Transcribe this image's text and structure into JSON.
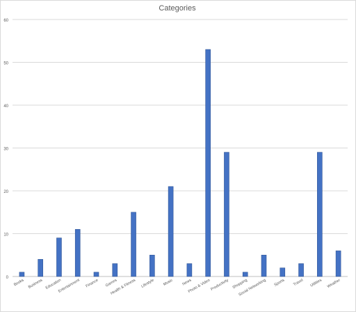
{
  "chart_data": {
    "type": "bar",
    "title": "Categories",
    "xlabel": "",
    "ylabel": "",
    "categories": [
      "Books",
      "Business",
      "Education",
      "Entertainment",
      "Finance",
      "Games",
      "Health & Fitness",
      "Lifestyle",
      "Music",
      "News",
      "Photo & Video",
      "Productivity",
      "Shopping",
      "Social Networking",
      "Sports",
      "Travel",
      "Utilities",
      "Weather"
    ],
    "values": [
      1,
      4,
      9,
      11,
      1,
      3,
      15,
      5,
      21,
      3,
      53,
      29,
      1,
      5,
      2,
      3,
      29,
      6
    ],
    "ylim": [
      0,
      60
    ],
    "yticks": [
      0,
      10,
      20,
      30,
      40,
      50,
      60
    ],
    "grid": true,
    "legend": "none",
    "colors": {
      "bar": "#4472c4",
      "bar_edge": "#2f5597",
      "grid": "#d9d9d9",
      "axis": "#bfbfbf",
      "text": "#595959"
    }
  }
}
